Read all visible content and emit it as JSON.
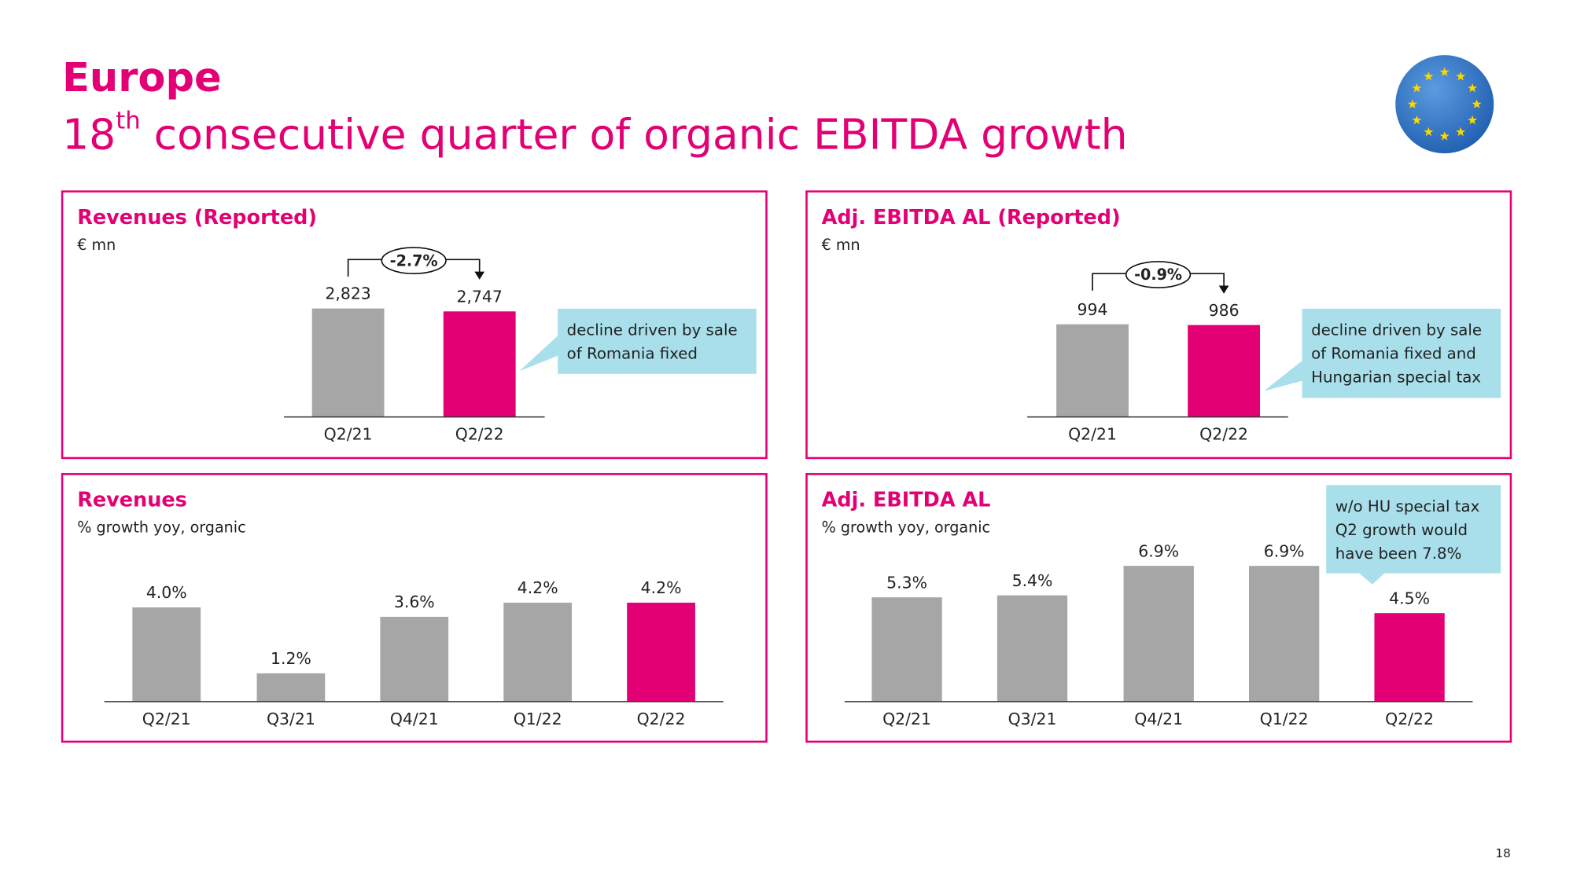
{
  "header": {
    "title": "Europe",
    "subtitle_number": "18",
    "subtitle_superscript": "th",
    "subtitle_rest": " consecutive quarter of organic EBITDA growth"
  },
  "page_number": "18",
  "chart_data": [
    {
      "type": "bar",
      "title": "Revenues (Reported)",
      "subtitle": "€ mn",
      "categories": [
        "Q2/21",
        "Q2/22"
      ],
      "values": [
        2823,
        2747
      ],
      "value_labels": [
        "2,823",
        "2,747"
      ],
      "colors": [
        "#a6a6a6",
        "#e20074"
      ],
      "ylim": [
        0,
        3000
      ],
      "change_label": "-2.7%",
      "callout": [
        "decline driven by sale",
        "of Romania fixed"
      ]
    },
    {
      "type": "bar",
      "title": "Adj. EBITDA AL (Reported)",
      "subtitle": "€ mn",
      "categories": [
        "Q2/21",
        "Q2/22"
      ],
      "values": [
        994,
        986
      ],
      "colors": [
        "#a6a6a6",
        "#e20074"
      ],
      "ylim": [
        0,
        1000
      ],
      "change_label": "-0.9%",
      "callout": [
        "decline driven by sale",
        "of Romania fixed and",
        "Hungarian special tax"
      ]
    },
    {
      "type": "bar",
      "title": "Revenues",
      "subtitle": "% growth yoy, organic",
      "categories": [
        "Q2/21",
        "Q3/21",
        "Q4/21",
        "Q1/22",
        "Q2/22"
      ],
      "values": [
        4.0,
        1.2,
        3.6,
        4.2,
        4.2
      ],
      "value_labels": [
        "4.0%",
        "1.2%",
        "3.6%",
        "4.2%",
        "4.2%"
      ],
      "colors": [
        "#a6a6a6",
        "#a6a6a6",
        "#a6a6a6",
        "#a6a6a6",
        "#e20074"
      ],
      "ylim": [
        0,
        5
      ]
    },
    {
      "type": "bar",
      "title": "Adj. EBITDA AL",
      "subtitle": "% growth yoy, organic",
      "categories": [
        "Q2/21",
        "Q3/21",
        "Q4/21",
        "Q1/22",
        "Q2/22"
      ],
      "values": [
        5.3,
        5.4,
        6.9,
        6.9,
        4.5
      ],
      "value_labels": [
        "5.3%",
        "5.4%",
        "6.9%",
        "6.9%",
        "4.5%"
      ],
      "colors": [
        "#a6a6a6",
        "#a6a6a6",
        "#a6a6a6",
        "#a6a6a6",
        "#e20074"
      ],
      "ylim": [
        0,
        8
      ],
      "callout": [
        "w/o HU special tax",
        "Q2 growth would",
        "have been 7.8%"
      ]
    }
  ]
}
